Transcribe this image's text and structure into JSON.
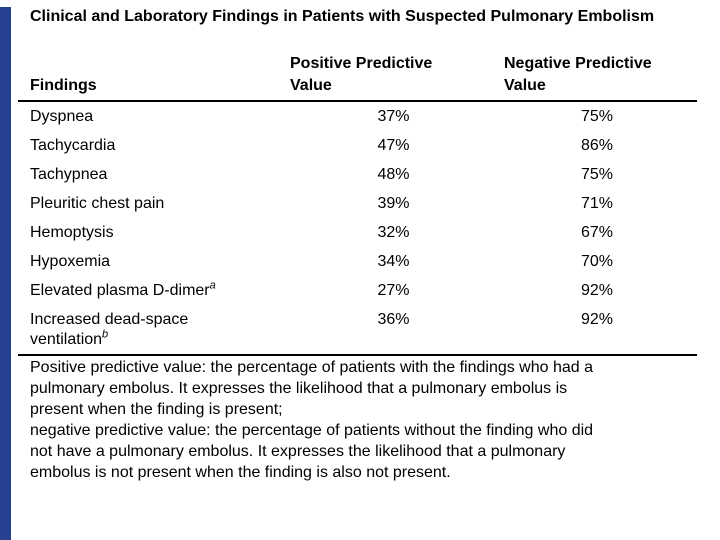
{
  "slide": {
    "accent_bar_color": "#26418f",
    "title": "Clinical and Laboratory Findings in Patients with Suspected Pulmonary Embolism"
  },
  "table": {
    "headers": {
      "findings": "Findings",
      "ppv": "Positive Predictive Value",
      "npv": "Negative Predictive Value"
    },
    "rows": [
      {
        "finding": "Dyspnea",
        "superscript": "",
        "ppv": "37%",
        "npv": "75%"
      },
      {
        "finding": "Tachycardia",
        "superscript": "",
        "ppv": "47%",
        "npv": "86%"
      },
      {
        "finding": "Tachypnea",
        "superscript": "",
        "ppv": "48%",
        "npv": "75%"
      },
      {
        "finding": "Pleuritic chest pain",
        "superscript": "",
        "ppv": "39%",
        "npv": "71%"
      },
      {
        "finding": "Hemoptysis",
        "superscript": "",
        "ppv": "32%",
        "npv": "67%"
      },
      {
        "finding": "Hypoxemia",
        "superscript": "",
        "ppv": "34%",
        "npv": "70%"
      },
      {
        "finding": "Elevated plasma D-dimer",
        "superscript": "a",
        "ppv": "27%",
        "npv": "92%"
      },
      {
        "finding": "Increased dead-space ventilation",
        "superscript": "b",
        "ppv": "36%",
        "npv": "92%"
      }
    ]
  },
  "footnote": {
    "lines": [
      "Positive predictive value: the percentage of patients with the findings who had a",
      "pulmonary embolus. It expresses the likelihood that a pulmonary embolus is",
      "present when the finding is present;",
      "negative predictive value: the percentage of patients without the finding who did",
      "not have a pulmonary embolus. It expresses the likelihood that a pulmonary",
      "embolus is not present when the finding is also not present."
    ]
  }
}
